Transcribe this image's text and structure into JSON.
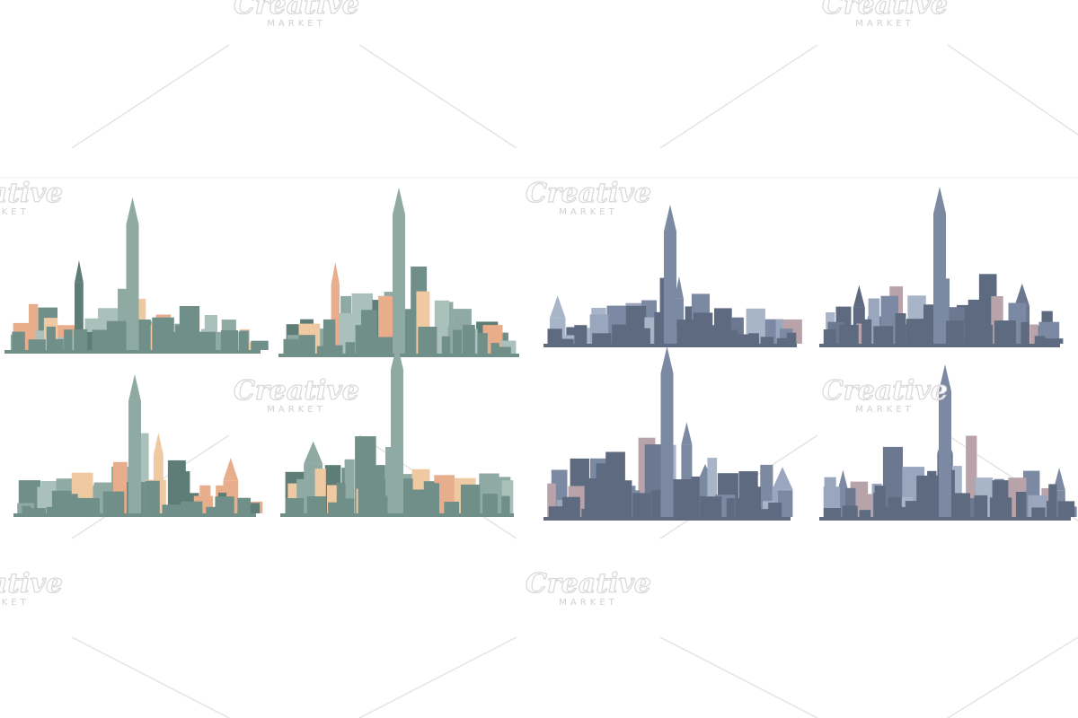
{
  "watermark": {
    "brand": "Creative",
    "sub": "MARKET"
  }
}
